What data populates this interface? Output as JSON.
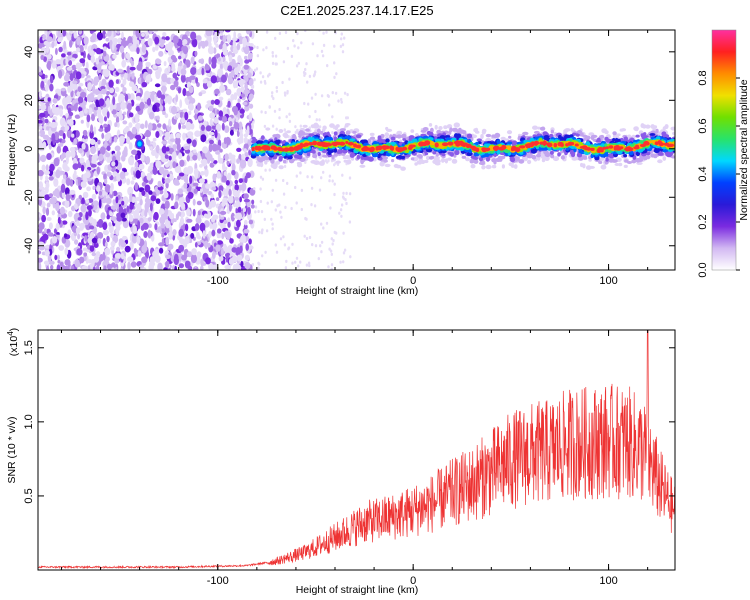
{
  "title": "C2E1.2025.237.14.17.E25",
  "chart_data": [
    {
      "type": "heatmap",
      "name": "spectrogram",
      "xlabel": "Height of straight line (km)",
      "ylabel": "Frequency (Hz)",
      "xlim": [
        -192,
        134
      ],
      "ylim": [
        -50,
        49
      ],
      "xticks": [
        -100,
        0,
        100
      ],
      "yticks": [
        40,
        20,
        0,
        -20,
        -40
      ],
      "noise_region_x": [
        -192,
        -82
      ],
      "signal_region_x": [
        -82,
        134
      ],
      "signal_center_freq": 1,
      "signal_band_halfwidth": 4,
      "colorbar": {
        "label": "Normalized spectral amplitude",
        "range": [
          0,
          1
        ],
        "ticks": [
          0.0,
          0.2,
          0.4,
          0.6,
          0.8
        ],
        "tick_labels": [
          "0.0",
          "0.2",
          "0.4",
          "0.6",
          "0.8"
        ],
        "colors": [
          "#ffffff",
          "#d2b8f2",
          "#7a2be0",
          "#2a1ad8",
          "#0040ff",
          "#00d8ff",
          "#28e36a",
          "#70e000",
          "#f0e000",
          "#ff8c00",
          "#ff2020",
          "#ff30a0"
        ]
      }
    },
    {
      "type": "line",
      "name": "snr",
      "xlabel": "Height of straight line (km)",
      "ylabel": "SNR (10 * v/v)",
      "scale_label": "(x10",
      "scale_exp": "4",
      "scale_close": ")",
      "xlim": [
        -192,
        134
      ],
      "ylim": [
        0,
        1.62
      ],
      "xticks": [
        -100,
        0,
        100
      ],
      "yticks": [
        0.5,
        1.0,
        1.5
      ],
      "ytick_labels": [
        "0.5",
        "1.0",
        "1.5"
      ],
      "color": "#ee3333",
      "envelope": {
        "x": [
          -192,
          -120,
          -85,
          -70,
          -55,
          -40,
          -25,
          -10,
          0,
          10,
          20,
          30,
          40,
          50,
          60,
          70,
          80,
          90,
          100,
          110,
          118,
          122,
          126,
          130,
          134
        ],
        "y": [
          0.02,
          0.02,
          0.03,
          0.06,
          0.12,
          0.22,
          0.32,
          0.36,
          0.4,
          0.45,
          0.52,
          0.58,
          0.66,
          0.74,
          0.78,
          0.8,
          0.85,
          0.86,
          0.87,
          0.86,
          0.8,
          0.7,
          0.58,
          0.48,
          0.4
        ],
        "peak": {
          "x": 120,
          "y": 1.62
        }
      }
    }
  ]
}
